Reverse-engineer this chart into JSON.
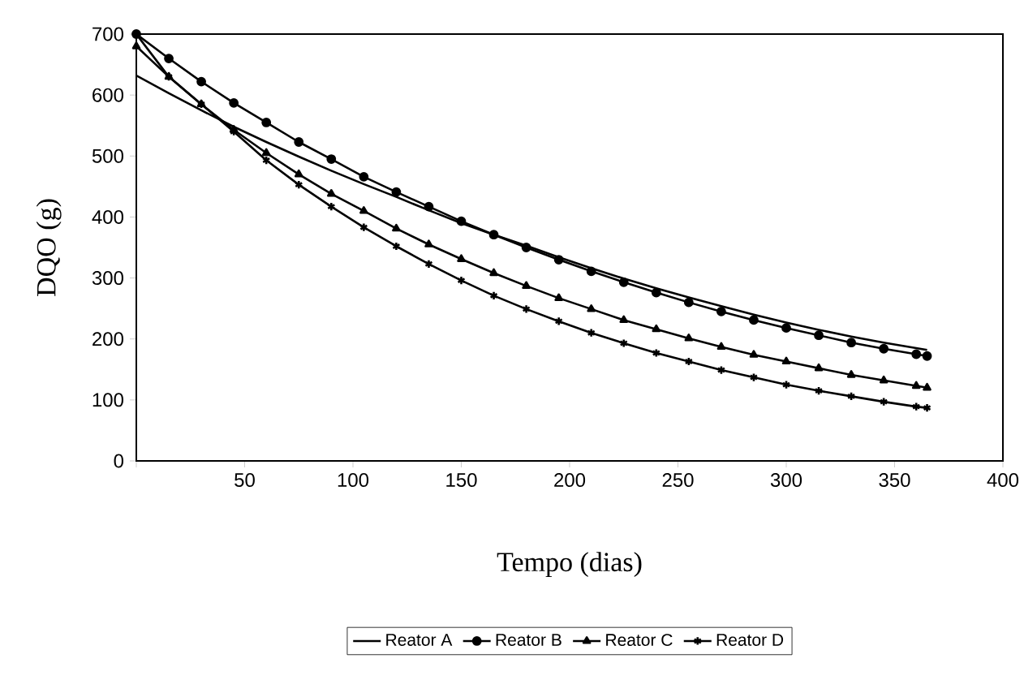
{
  "chart_data": {
    "type": "line",
    "xlabel": "Tempo (dias)",
    "ylabel": "DQO (g)",
    "x": [
      0,
      15,
      30,
      45,
      60,
      75,
      90,
      105,
      120,
      135,
      150,
      165,
      180,
      195,
      210,
      225,
      240,
      255,
      270,
      285,
      300,
      315,
      330,
      345,
      360,
      365
    ],
    "xlim": [
      0,
      400
    ],
    "ylim": [
      0,
      700
    ],
    "xticks": [
      {
        "value": 0,
        "label": null
      },
      50,
      100,
      150,
      200,
      250,
      300,
      350,
      400
    ],
    "yticks": [
      0,
      100,
      200,
      300,
      400,
      500,
      600,
      700
    ],
    "grid": false,
    "legend": "bottom",
    "line_style": "solid",
    "series": [
      {
        "name": "Reator A",
        "color": "#000000",
        "marker": "none",
        "values": [
          632,
          603,
          575,
          548,
          523,
          499,
          476,
          454,
          433,
          411,
          390,
          371,
          353,
          334,
          316,
          299,
          283,
          268,
          254,
          240,
          227,
          215,
          204,
          194,
          185,
          182
        ]
      },
      {
        "name": "Reator B",
        "color": "#000000",
        "marker": "circle",
        "values": [
          700,
          660,
          622,
          587,
          555,
          523,
          495,
          466,
          441,
          417,
          393,
          371,
          350,
          330,
          311,
          293,
          276,
          260,
          245,
          231,
          218,
          206,
          194,
          184,
          175,
          172
        ]
      },
      {
        "name": "Reator C",
        "color": "#000000",
        "marker": "triangle",
        "values": [
          680,
          630,
          585,
          543,
          505,
          470,
          438,
          410,
          381,
          355,
          331,
          308,
          287,
          267,
          249,
          231,
          216,
          201,
          187,
          174,
          163,
          152,
          141,
          132,
          123,
          120
        ]
      },
      {
        "name": "Reator D",
        "color": "#000000",
        "marker": "cross",
        "values": [
          700,
          630,
          585,
          540,
          493,
          453,
          417,
          383,
          352,
          323,
          296,
          271,
          249,
          229,
          210,
          193,
          177,
          163,
          149,
          137,
          125,
          115,
          106,
          97,
          89,
          87
        ]
      }
    ]
  }
}
